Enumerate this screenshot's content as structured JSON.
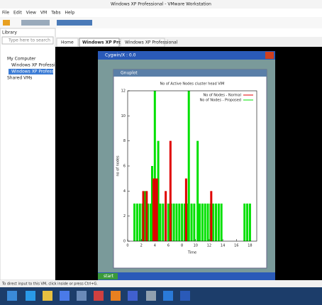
{
  "window": {
    "title": "Windows XP Professional - VMware Workstation",
    "menu": [
      "File",
      "Edit",
      "View",
      "VM",
      "Tabs",
      "Help"
    ]
  },
  "library": {
    "title": "Library",
    "search": "Type here to search",
    "items": [
      "My Computer",
      "Windows XP Professio",
      "Windows XP Professio",
      "Shared VMs"
    ]
  },
  "tabs": [
    "Home",
    "Windows XP Professional",
    "Windows XP Professional"
  ],
  "vm": {
    "cygwin_title": "Cygwin/X : 0.0",
    "gnuplot_title": "Gnuplot",
    "start": "start"
  },
  "status": "To direct input to this VM, click inside or press Ctrl+G.",
  "chart_data": {
    "type": "impulse",
    "title": "No of Active Nodes cluster head VIM",
    "x_label": "Time",
    "y_label": "no of nodes",
    "xlim": [
      0,
      19
    ],
    "ylim": [
      0,
      12
    ],
    "xticks": [
      0,
      2,
      4,
      6,
      8,
      10,
      12,
      14,
      16,
      18
    ],
    "yticks": [
      0,
      2,
      4,
      6,
      8,
      10,
      12
    ],
    "legend": "top-right",
    "series": [
      {
        "name": "No of Nodes - Normal",
        "color": "#e00000",
        "x": [
          2.3,
          2.8,
          3.8,
          4.0,
          4.3,
          5.6,
          6.3,
          8.6,
          12.3
        ],
        "values": [
          4,
          4,
          5,
          5,
          5,
          4,
          8,
          5,
          4
        ]
      },
      {
        "name": "No of Nodes - Proposed",
        "color": "#00e000",
        "x": [
          1.0,
          1.4,
          1.8,
          2.2,
          2.6,
          3.0,
          3.4,
          3.6,
          3.8,
          4.0,
          4.2,
          4.5,
          4.8,
          5.2,
          5.6,
          6.0,
          6.4,
          6.8,
          7.2,
          7.6,
          8.0,
          8.4,
          8.8,
          9.0,
          9.4,
          9.8,
          10.3,
          10.6,
          11.0,
          11.4,
          11.8,
          12.2,
          12.6,
          13.0,
          13.4,
          13.8,
          17.2,
          17.6,
          18.0
        ],
        "values": [
          3,
          3,
          3,
          3,
          4,
          3,
          3,
          6,
          4,
          12,
          3,
          8,
          3,
          3,
          3,
          3,
          3,
          3,
          3,
          3,
          3,
          3,
          3,
          12,
          3,
          3,
          8,
          3,
          3,
          3,
          3,
          3,
          3,
          3,
          3,
          3,
          3,
          3,
          3
        ]
      }
    ]
  }
}
